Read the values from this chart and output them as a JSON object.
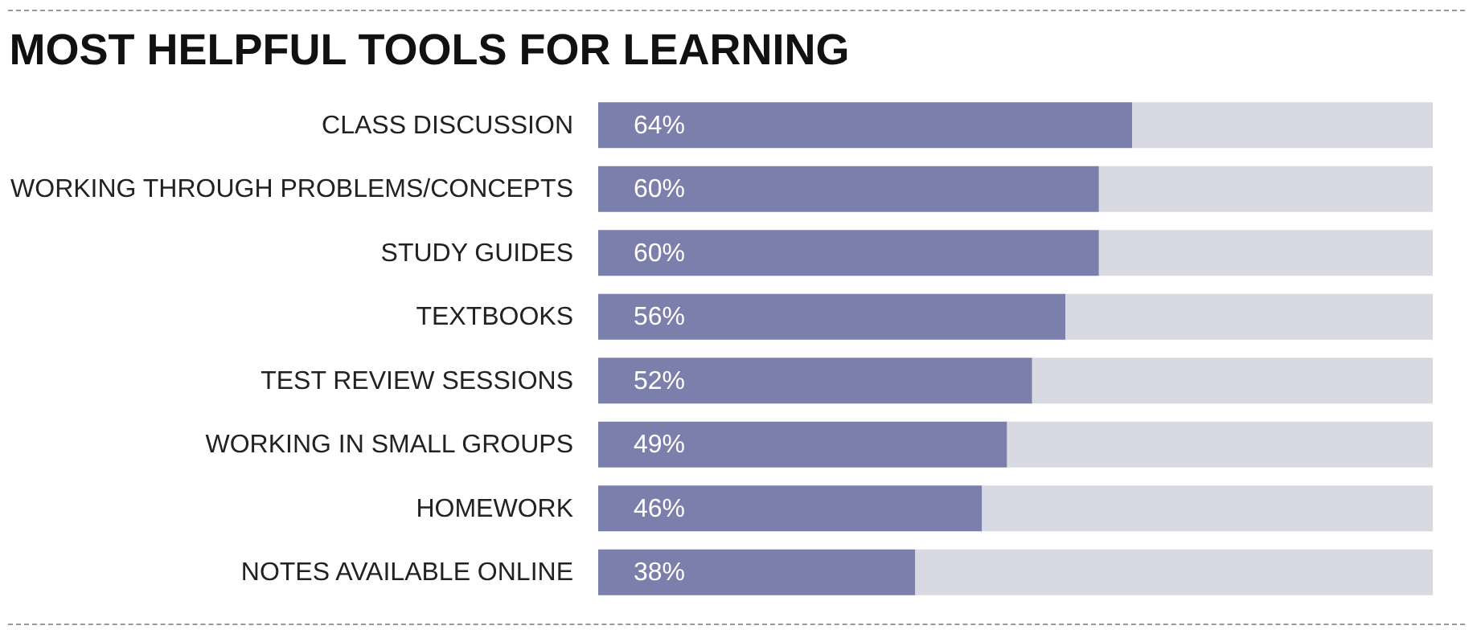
{
  "chart_data": {
    "type": "bar",
    "orientation": "horizontal",
    "stacked": true,
    "title": "MOST HELPFUL TOOLS FOR LEARNING",
    "categories": [
      "CLASS DISCUSSION",
      "WORKING THROUGH PROBLEMS/CONCEPTS",
      "STUDY GUIDES",
      "TEXTBOOKS",
      "TEST REVIEW SESSIONS",
      "WORKING IN SMALL GROUPS",
      "HOMEWORK",
      "NOTES AVAILABLE ONLINE"
    ],
    "series": [
      {
        "color": "#7b7fab",
        "values": [
          64,
          60,
          60,
          56,
          52,
          49,
          46,
          38
        ],
        "value_labels": [
          "64%",
          "60%",
          "60%",
          "56%",
          "52%",
          "49%",
          "46%",
          "38%"
        ]
      },
      {
        "color": "#d9d9e3",
        "values": [
          36,
          40,
          40,
          44,
          48,
          51,
          54,
          62
        ]
      }
    ]
  }
}
